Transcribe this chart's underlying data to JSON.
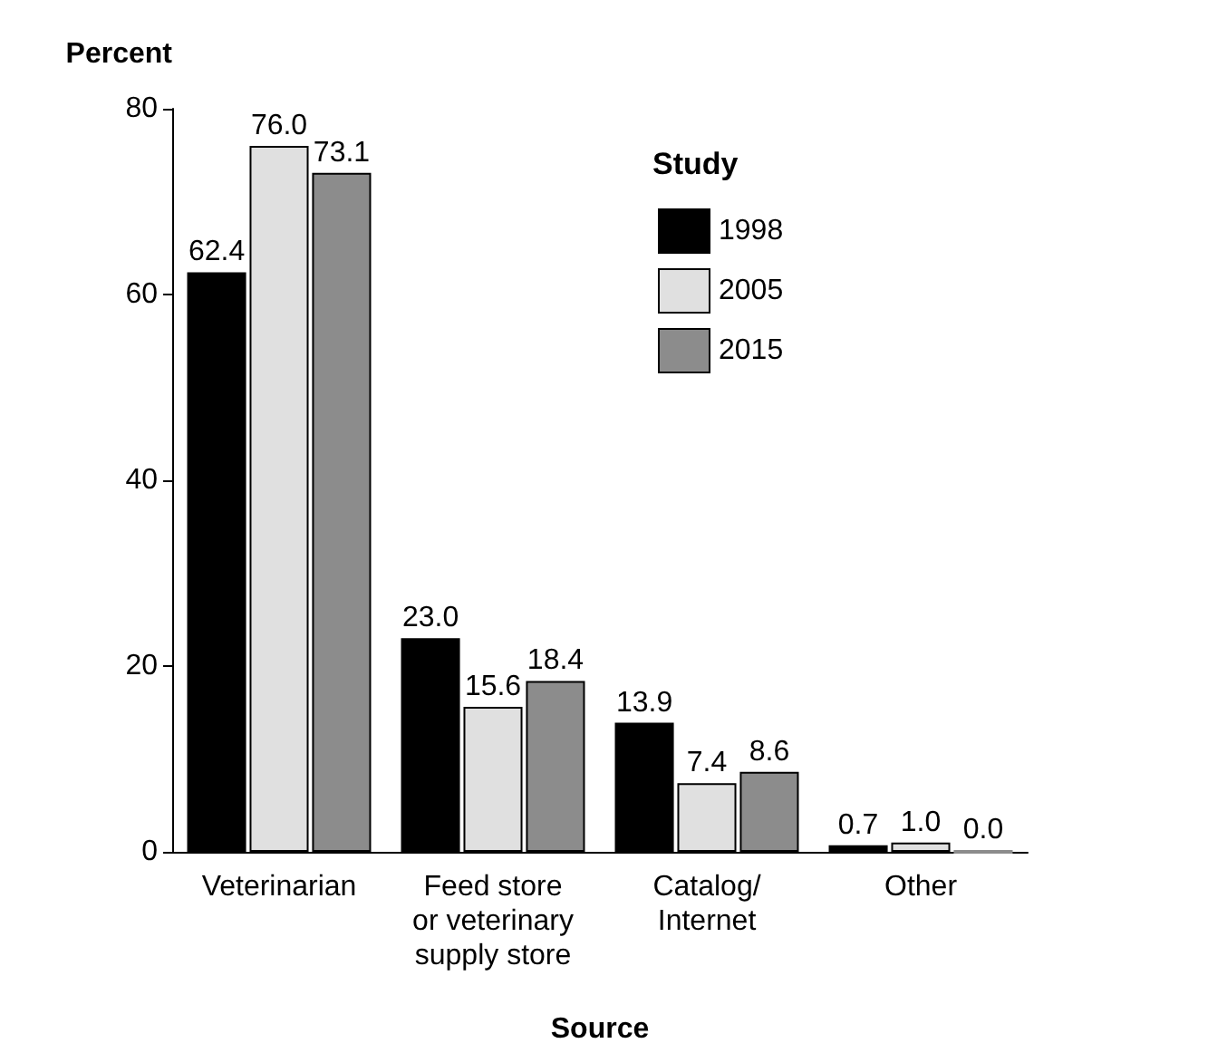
{
  "chart_data": {
    "type": "bar",
    "ylabel": "Percent",
    "xlabel": "Source",
    "legend_title": "Study",
    "categories": [
      "Veterinarian",
      "Feed store\nor veterinary\nsupply store",
      "Catalog/\nInternet",
      "Other"
    ],
    "series": [
      {
        "name": "1998",
        "color": "#000000",
        "values": [
          62.4,
          23.0,
          13.9,
          0.7
        ],
        "value_labels": [
          "62.4",
          "23.0",
          "13.9",
          "0.7"
        ]
      },
      {
        "name": "2005",
        "color": "#e0e0e0",
        "values": [
          76.0,
          15.6,
          7.4,
          1.0
        ],
        "value_labels": [
          "76.0",
          "15.6",
          "7.4",
          "1.0"
        ]
      },
      {
        "name": "2015",
        "color": "#8c8c8c",
        "values": [
          73.1,
          18.4,
          8.6,
          0.0
        ],
        "value_labels": [
          "73.1",
          "18.4",
          "8.6",
          "0.0"
        ]
      }
    ],
    "ylim": [
      0,
      80
    ],
    "yticks": [
      0,
      20,
      40,
      60,
      80
    ],
    "grid": false,
    "legend": "top right"
  }
}
